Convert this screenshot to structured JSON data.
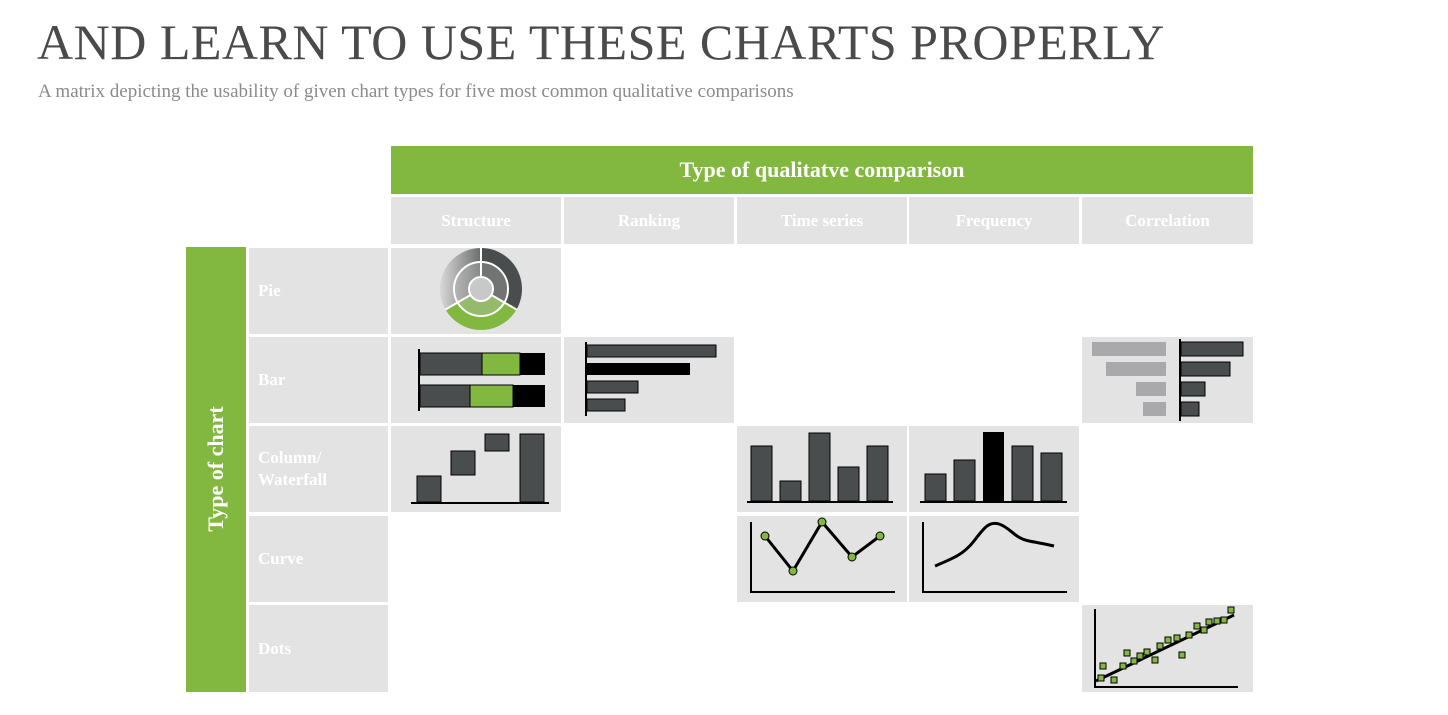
{
  "page": {
    "title": "AND LEARN TO USE THESE CHARTS PROPERLY",
    "subtitle": "A matrix depicting the usability of given chart types for five most common qualitative comparisons"
  },
  "matrix": {
    "column_group_label": "Type of qualitatve comparison",
    "row_group_label": "Type of chart",
    "columns": [
      "Structure",
      "Ranking",
      "Time series",
      "Frequency",
      "Correlation"
    ],
    "rows": [
      "Pie",
      "Bar",
      "Column/\nWaterfall",
      "Curve",
      "Dots"
    ],
    "filled_cells": [
      {
        "row": "Pie",
        "column": "Structure",
        "icon": "donut-chart-icon"
      },
      {
        "row": "Bar",
        "column": "Structure",
        "icon": "stacked-bar-icon"
      },
      {
        "row": "Bar",
        "column": "Ranking",
        "icon": "ranked-bar-icon"
      },
      {
        "row": "Bar",
        "column": "Correlation",
        "icon": "tornado-bar-icon"
      },
      {
        "row": "Column/\nWaterfall",
        "column": "Structure",
        "icon": "waterfall-icon"
      },
      {
        "row": "Column/\nWaterfall",
        "column": "Time series",
        "icon": "column-chart-icon"
      },
      {
        "row": "Column/\nWaterfall",
        "column": "Frequency",
        "icon": "histogram-icon"
      },
      {
        "row": "Curve",
        "column": "Time series",
        "icon": "line-with-markers-icon"
      },
      {
        "row": "Curve",
        "column": "Frequency",
        "icon": "distribution-curve-icon"
      },
      {
        "row": "Dots",
        "column": "Correlation",
        "icon": "scatter-trend-icon"
      }
    ]
  },
  "colors": {
    "accent_green": "#82b840",
    "cell_grey": "#e3e3e4",
    "dark_grey": "#4a4d4d",
    "light_grey": "#a9a9ab",
    "black": "#000000"
  }
}
